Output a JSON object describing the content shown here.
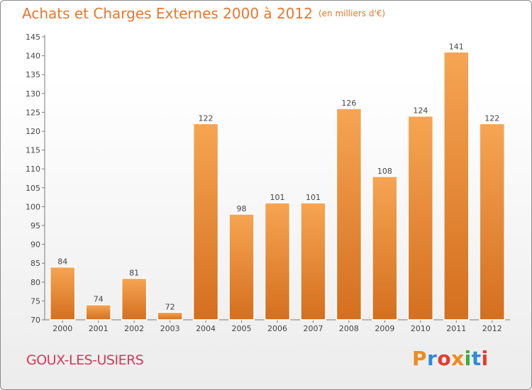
{
  "header": {
    "title": "Achats et Charges Externes 2000 à 2012",
    "unit": "(en milliers d'€)"
  },
  "footer": {
    "commune": "GOUX-LES-USIERS",
    "logo": "Proxiti"
  },
  "colors": {
    "title": "#e8762c",
    "commune": "#d6385a",
    "bar_light": "#f6a553",
    "bar_dark": "#d46f1e",
    "logo_letters": [
      "#f08a1c",
      "#2f8ad8",
      "#e43c2c",
      "#f08a1c",
      "#3cab3a",
      "#2f8ad8",
      "#e43c2c"
    ]
  },
  "chart_data": {
    "type": "bar",
    "title": "Achats et Charges Externes 2000 à 2012",
    "xlabel": "",
    "ylabel": "",
    "categories": [
      "2000",
      "2001",
      "2002",
      "2003",
      "2004",
      "2005",
      "2006",
      "2007",
      "2008",
      "2009",
      "2010",
      "2011",
      "2012"
    ],
    "values": [
      84,
      74,
      81,
      72,
      122,
      98,
      101,
      101,
      126,
      108,
      124,
      141,
      122
    ],
    "ylim": [
      70,
      145
    ],
    "yticks": [
      70,
      75,
      80,
      85,
      90,
      95,
      100,
      105,
      110,
      115,
      120,
      125,
      130,
      135,
      140,
      145
    ],
    "grid": false,
    "legend": "none"
  }
}
